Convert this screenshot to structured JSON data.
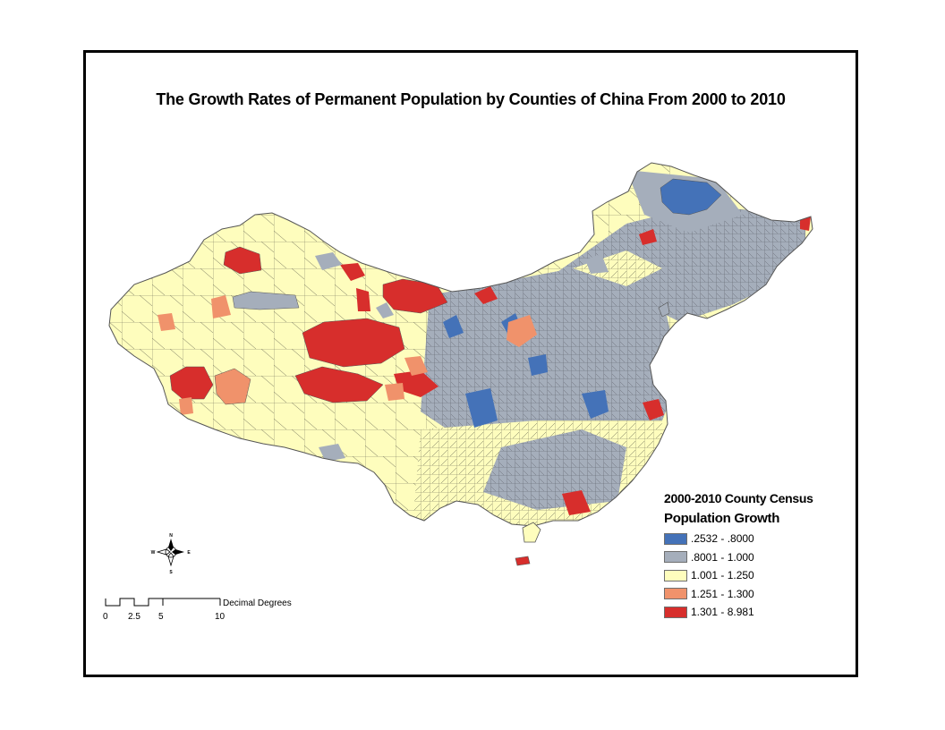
{
  "title": "The Growth Rates of Permanent Population by Counties of China From 2000 to 2010",
  "legend": {
    "heading": "2000-2010 County Census",
    "subheading": "Population Growth",
    "classes": [
      {
        "label": ".2532 - .8000",
        "color": "#4472b8"
      },
      {
        "label": ".8001 - 1.000",
        "color": "#a5aebb"
      },
      {
        "label": "1.001 - 1.250",
        "color": "#fefdbd"
      },
      {
        "label": "1.251 - 1.300",
        "color": "#f0926b"
      },
      {
        "label": "1.301 - 8.981",
        "color": "#d72e2c"
      }
    ]
  },
  "compass": {
    "n": "N",
    "s": "S",
    "e": "E",
    "w": "W"
  },
  "scale_bar": {
    "unit": "Decimal Degrees",
    "ticks": [
      "0",
      "2.5",
      "5",
      "10"
    ]
  }
}
